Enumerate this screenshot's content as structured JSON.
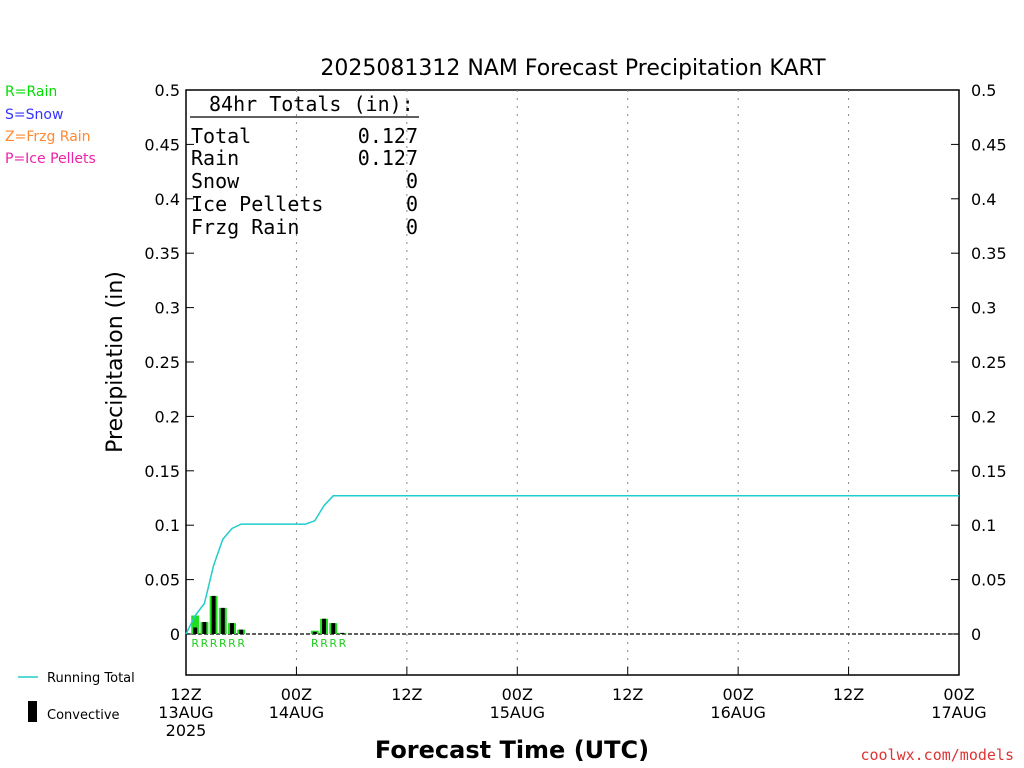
{
  "chart_data": {
    "type": "bar",
    "title": "2025081312 NAM Forecast Precipitation KART",
    "ylabel": "Precipitation (in)",
    "xlabel": "Forecast Time (UTC)",
    "ylim": [
      0,
      0.5
    ],
    "xlim_hours": [
      0,
      84
    ],
    "yticks": [
      "0",
      "0.05",
      "0.1",
      "0.15",
      "0.2",
      "0.25",
      "0.3",
      "0.35",
      "0.4",
      "0.45",
      "0.5"
    ],
    "xticks": [
      {
        "hour": 0,
        "lines": [
          "12Z",
          "13AUG",
          "2025"
        ]
      },
      {
        "hour": 12,
        "lines": [
          "00Z",
          "14AUG"
        ]
      },
      {
        "hour": 24,
        "lines": [
          "12Z"
        ]
      },
      {
        "hour": 36,
        "lines": [
          "00Z",
          "15AUG"
        ]
      },
      {
        "hour": 48,
        "lines": [
          "12Z"
        ]
      },
      {
        "hour": 60,
        "lines": [
          "00Z",
          "16AUG"
        ]
      },
      {
        "hour": 72,
        "lines": [
          "12Z"
        ]
      },
      {
        "hour": 84,
        "lines": [
          "00Z",
          "17AUG"
        ]
      }
    ],
    "grid": "vertical-dotted",
    "totals_box": {
      "heading": "84hr Totals (in):",
      "rows": [
        {
          "label": "Total",
          "value": "0.127"
        },
        {
          "label": "Rain",
          "value": "0.127"
        },
        {
          "label": "Snow",
          "value": "0"
        },
        {
          "label": "Ice Pellets",
          "value": "0"
        },
        {
          "label": "Frzg Rain",
          "value": "0"
        }
      ]
    },
    "ptype_legend": [
      {
        "text": "R=Rain",
        "color": "#00dd00"
      },
      {
        "text": "S=Snow",
        "color": "#3333ff"
      },
      {
        "text": "Z=Frzg Rain",
        "color": "#ff8833"
      },
      {
        "text": "P=Ice Pellets",
        "color": "#ee22aa"
      }
    ],
    "series_legend": {
      "running_total": "Running Total",
      "convective": "Convective"
    },
    "bars": [
      {
        "hour": 1,
        "total": 0.017,
        "convective": 0.006
      },
      {
        "hour": 2,
        "total": 0.011,
        "convective": 0.011
      },
      {
        "hour": 3,
        "total": 0.035,
        "convective": 0.035
      },
      {
        "hour": 4,
        "total": 0.024,
        "convective": 0.024
      },
      {
        "hour": 5,
        "total": 0.01,
        "convective": 0.01
      },
      {
        "hour": 6,
        "total": 0.004,
        "convective": 0.004
      },
      {
        "hour": 14,
        "total": 0.003,
        "convective": 0.002
      },
      {
        "hour": 15,
        "total": 0.014,
        "convective": 0.014
      },
      {
        "hour": 16,
        "total": 0.01,
        "convective": 0.01
      },
      {
        "hour": 17,
        "total": 0.001,
        "convective": 0.001
      }
    ],
    "ptype_markers": [
      {
        "hour": 1,
        "label": "R"
      },
      {
        "hour": 2,
        "label": "R"
      },
      {
        "hour": 3,
        "label": "R"
      },
      {
        "hour": 4,
        "label": "R"
      },
      {
        "hour": 5,
        "label": "R"
      },
      {
        "hour": 6,
        "label": "R"
      },
      {
        "hour": 14,
        "label": "R"
      },
      {
        "hour": 15,
        "label": "R"
      },
      {
        "hour": 16,
        "label": "R"
      },
      {
        "hour": 17,
        "label": "R"
      }
    ],
    "running_total": [
      {
        "hour": 0,
        "value": 0.0
      },
      {
        "hour": 1,
        "value": 0.017
      },
      {
        "hour": 2,
        "value": 0.028
      },
      {
        "hour": 3,
        "value": 0.063
      },
      {
        "hour": 4,
        "value": 0.087
      },
      {
        "hour": 5,
        "value": 0.097
      },
      {
        "hour": 6,
        "value": 0.101
      },
      {
        "hour": 13,
        "value": 0.101
      },
      {
        "hour": 14,
        "value": 0.104
      },
      {
        "hour": 15,
        "value": 0.118
      },
      {
        "hour": 16,
        "value": 0.127
      },
      {
        "hour": 84,
        "value": 0.127
      }
    ],
    "colors": {
      "running_total": "#22cccc",
      "bar_total": "#22dd22",
      "bar_convective": "#000000",
      "rain_marker": "#22cc22",
      "credit": "#dd3333"
    }
  },
  "credit": "coolwx.com/models"
}
